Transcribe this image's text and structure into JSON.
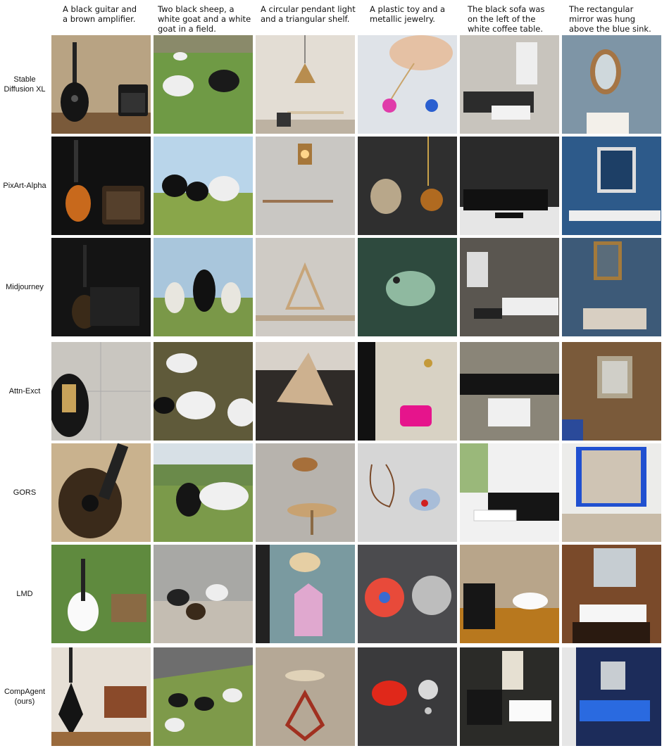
{
  "prompts": [
    "A black guitar and\na brown amplifier.",
    "Two black sheep, a\nwhite goat and a white\ngoat in a field.",
    "A circular pendant light\nand a triangular shelf.",
    "A plastic toy and a\nmetallic jewelry.",
    "The black sofa was\non the left of the\nwhite coffee table.",
    "The rectangular\nmirror was hung\nabove the blue sink."
  ],
  "methods": [
    "Stable\nDiffusion XL",
    "PixArt-Alpha",
    "Midjourney",
    "Attn-Exct",
    "GORS",
    "LMD",
    "CompAgent\n(ours)"
  ]
}
